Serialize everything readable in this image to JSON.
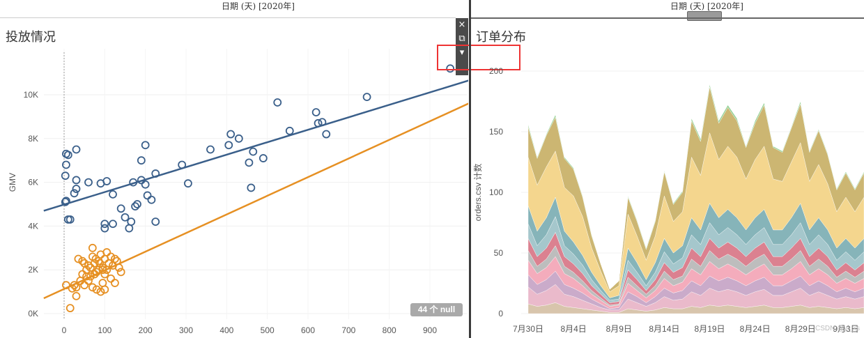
{
  "header": {
    "left_date": "日期 (天) [2020年]",
    "right_date": "日期 (天) [2020年]"
  },
  "scatter_panel": {
    "title": "投放情况",
    "null_badge": "44 个 null",
    "toolbar": {
      "close_icon": "×",
      "popout_icon": "⧉",
      "sort_icon": "▾"
    }
  },
  "area_panel": {
    "title": "订单分布"
  },
  "watermark": "CSDN @yi_xs",
  "chart_data": [
    {
      "type": "scatter",
      "title": "投放情况",
      "xlabel": "",
      "ylabel": "GMV",
      "xlim": [
        -50,
        1000
      ],
      "ylim": [
        -200,
        11500
      ],
      "x_ticks": [
        "0",
        "100",
        "200",
        "300",
        "400",
        "500",
        "600",
        "700",
        "800",
        "900"
      ],
      "y_ticks": [
        "0K",
        "2K",
        "4K",
        "6K",
        "8K",
        "10K"
      ],
      "series": [
        {
          "color": "#3a5f8a",
          "points": [
            [
              5,
              7300
            ],
            [
              10,
              7250
            ],
            [
              30,
              7500
            ],
            [
              5,
              6800
            ],
            [
              3,
              6300
            ],
            [
              5,
              5150
            ],
            [
              3,
              5100
            ],
            [
              30,
              5700
            ],
            [
              25,
              5500
            ],
            [
              30,
              6100
            ],
            [
              10,
              4300
            ],
            [
              15,
              4300
            ],
            [
              60,
              6000
            ],
            [
              90,
              5950
            ],
            [
              105,
              6050
            ],
            [
              120,
              5450
            ],
            [
              100,
              4100
            ],
            [
              100,
              3900
            ],
            [
              120,
              4100
            ],
            [
              140,
              4800
            ],
            [
              150,
              4400
            ],
            [
              160,
              3900
            ],
            [
              165,
              4200
            ],
            [
              170,
              6000
            ],
            [
              175,
              4900
            ],
            [
              180,
              5000
            ],
            [
              190,
              6100
            ],
            [
              190,
              7000
            ],
            [
              200,
              7700
            ],
            [
              200,
              5900
            ],
            [
              205,
              5400
            ],
            [
              215,
              5200
            ],
            [
              225,
              6400
            ],
            [
              225,
              4200
            ],
            [
              290,
              6800
            ],
            [
              305,
              5950
            ],
            [
              360,
              7500
            ],
            [
              405,
              7700
            ],
            [
              410,
              8200
            ],
            [
              430,
              8000
            ],
            [
              455,
              6900
            ],
            [
              460,
              5750
            ],
            [
              465,
              7400
            ],
            [
              490,
              7100
            ],
            [
              525,
              9650
            ],
            [
              555,
              8350
            ],
            [
              620,
              9200
            ],
            [
              625,
              8700
            ],
            [
              635,
              8750
            ],
            [
              645,
              8200
            ],
            [
              745,
              9900
            ],
            [
              950,
              11200
            ]
          ]
        },
        {
          "color": "#e69023",
          "points": [
            [
              5,
              1300
            ],
            [
              15,
              250
            ],
            [
              20,
              1150
            ],
            [
              25,
              1300
            ],
            [
              30,
              800
            ],
            [
              30,
              1200
            ],
            [
              35,
              2500
            ],
            [
              40,
              1500
            ],
            [
              45,
              1800
            ],
            [
              50,
              2300
            ],
            [
              55,
              2000
            ],
            [
              60,
              2200
            ],
            [
              65,
              1700
            ],
            [
              70,
              2600
            ],
            [
              70,
              3000
            ],
            [
              75,
              2300
            ],
            [
              80,
              1900
            ],
            [
              85,
              2400
            ],
            [
              90,
              2700
            ],
            [
              95,
              2100
            ],
            [
              100,
              1800
            ],
            [
              100,
              2500
            ],
            [
              105,
              2000
            ],
            [
              110,
              2300
            ],
            [
              115,
              1600
            ],
            [
              120,
              2200
            ],
            [
              125,
              1400
            ],
            [
              130,
              2400
            ],
            [
              135,
              2100
            ],
            [
              140,
              1900
            ],
            [
              60,
              1500
            ],
            [
              70,
              1200
            ],
            [
              80,
              1100
            ],
            [
              90,
              1000
            ],
            [
              95,
              1400
            ],
            [
              100,
              1100
            ],
            [
              85,
              2000
            ],
            [
              75,
              1800
            ],
            [
              65,
              2100
            ],
            [
              55,
              1700
            ],
            [
              50,
              1300
            ],
            [
              45,
              2400
            ],
            [
              105,
              2800
            ],
            [
              115,
              2600
            ],
            [
              125,
              2500
            ],
            [
              95,
              2000
            ],
            [
              88,
              2300
            ],
            [
              78,
              2500
            ]
          ]
        }
      ],
      "trend_lines": [
        {
          "color": "#3a5f8a",
          "from": [
            -50,
            4700
          ],
          "to": [
            995,
            10650
          ]
        },
        {
          "color": "#e69023",
          "from": [
            -50,
            700
          ],
          "to": [
            995,
            9600
          ]
        }
      ]
    },
    {
      "type": "area",
      "title": "订单分布",
      "ylabel": "orders.csv 计数",
      "ylim": [
        0,
        210
      ],
      "y_ticks": [
        "0",
        "50",
        "100",
        "150",
        "200"
      ],
      "x_ticks": [
        "7月30日",
        "8月4日",
        "8月9日",
        "8月14日",
        "8月19日",
        "8月24日",
        "8月29日",
        "9月3日",
        "9月"
      ],
      "x": [
        "7/30",
        "7/31",
        "8/1",
        "8/2",
        "8/3",
        "8/4",
        "8/5",
        "8/6",
        "8/7",
        "8/8",
        "8/9",
        "8/10",
        "8/11",
        "8/12",
        "8/13",
        "8/14",
        "8/15",
        "8/16",
        "8/17",
        "8/18",
        "8/19",
        "8/20",
        "8/21",
        "8/22",
        "8/23",
        "8/24",
        "8/25",
        "8/26",
        "8/27",
        "8/28",
        "8/29",
        "8/30",
        "8/31",
        "9/1",
        "9/2",
        "9/3",
        "9/4",
        "9/5"
      ],
      "series": [
        {
          "color": "#d6c2a8",
          "values": [
            8,
            6,
            7,
            9,
            6,
            5,
            4,
            3,
            2,
            1,
            1,
            4,
            3,
            2,
            3,
            5,
            4,
            4,
            6,
            5,
            7,
            6,
            7,
            6,
            5,
            6,
            7,
            5,
            5,
            6,
            7,
            5,
            6,
            5,
            4,
            5,
            4,
            5
          ]
        },
        {
          "color": "#e9b6c8",
          "values": [
            14,
            10,
            12,
            15,
            10,
            9,
            7,
            5,
            3,
            2,
            2,
            8,
            6,
            4,
            6,
            9,
            7,
            8,
            12,
            10,
            14,
            12,
            13,
            12,
            10,
            12,
            13,
            10,
            10,
            12,
            14,
            10,
            12,
            10,
            8,
            9,
            8,
            9
          ]
        },
        {
          "color": "#c7a6c7",
          "values": [
            10,
            8,
            9,
            11,
            8,
            7,
            6,
            4,
            3,
            1,
            2,
            6,
            5,
            3,
            5,
            7,
            6,
            7,
            9,
            8,
            10,
            9,
            10,
            9,
            8,
            9,
            10,
            8,
            8,
            9,
            10,
            8,
            9,
            8,
            6,
            7,
            6,
            7
          ]
        },
        {
          "color": "#f3a8b8",
          "values": [
            12,
            9,
            10,
            12,
            9,
            8,
            6,
            4,
            3,
            2,
            2,
            7,
            5,
            4,
            5,
            8,
            6,
            7,
            10,
            9,
            12,
            10,
            11,
            10,
            9,
            10,
            11,
            9,
            9,
            10,
            12,
            9,
            10,
            9,
            7,
            8,
            7,
            8
          ]
        },
        {
          "color": "#b9b9b9",
          "values": [
            8,
            6,
            7,
            9,
            6,
            5,
            4,
            3,
            2,
            1,
            1,
            5,
            4,
            3,
            4,
            6,
            5,
            5,
            8,
            7,
            9,
            8,
            8,
            8,
            7,
            8,
            8,
            7,
            7,
            8,
            9,
            7,
            8,
            7,
            5,
            6,
            5,
            6
          ]
        },
        {
          "color": "#d97a8a",
          "values": [
            10,
            8,
            9,
            11,
            8,
            7,
            6,
            4,
            3,
            2,
            2,
            6,
            5,
            3,
            5,
            7,
            6,
            7,
            9,
            8,
            10,
            9,
            10,
            9,
            8,
            9,
            10,
            8,
            8,
            9,
            10,
            8,
            9,
            8,
            6,
            7,
            6,
            7
          ]
        },
        {
          "color": "#a0c4c9",
          "values": [
            12,
            9,
            11,
            13,
            9,
            8,
            7,
            5,
            3,
            2,
            2,
            8,
            6,
            4,
            6,
            9,
            7,
            8,
            11,
            10,
            13,
            11,
            12,
            11,
            10,
            11,
            12,
            10,
            10,
            11,
            13,
            10,
            11,
            10,
            8,
            9,
            8,
            9
          ]
        },
        {
          "color": "#7fb0b5",
          "values": [
            15,
            12,
            14,
            16,
            12,
            10,
            8,
            6,
            4,
            2,
            3,
            10,
            8,
            5,
            8,
            11,
            9,
            10,
            14,
            12,
            16,
            14,
            15,
            14,
            12,
            14,
            15,
            12,
            12,
            14,
            16,
            12,
            14,
            12,
            10,
            11,
            10,
            11
          ]
        },
        {
          "color": "#f3d488",
          "values": [
            40,
            38,
            42,
            38,
            36,
            38,
            32,
            20,
            12,
            5,
            8,
            28,
            22,
            16,
            22,
            35,
            26,
            28,
            50,
            45,
            58,
            48,
            52,
            50,
            42,
            48,
            52,
            42,
            40,
            46,
            50,
            40,
            44,
            38,
            30,
            34,
            30,
            34
          ]
        },
        {
          "color": "#c9b26a",
          "values": [
            25,
            22,
            26,
            28,
            24,
            22,
            16,
            10,
            6,
            2,
            4,
            14,
            12,
            9,
            12,
            20,
            14,
            16,
            30,
            28,
            38,
            30,
            32,
            30,
            26,
            30,
            34,
            26,
            24,
            28,
            32,
            24,
            28,
            24,
            18,
            20,
            18,
            20
          ]
        },
        {
          "color": "#8fcf8f",
          "values": [
            2,
            1,
            1,
            2,
            1,
            1,
            1,
            1,
            0,
            0,
            0,
            1,
            1,
            1,
            1,
            1,
            1,
            1,
            2,
            2,
            2,
            2,
            2,
            2,
            1,
            2,
            2,
            1,
            1,
            1,
            2,
            1,
            1,
            1,
            1,
            1,
            1,
            1
          ]
        }
      ]
    }
  ]
}
